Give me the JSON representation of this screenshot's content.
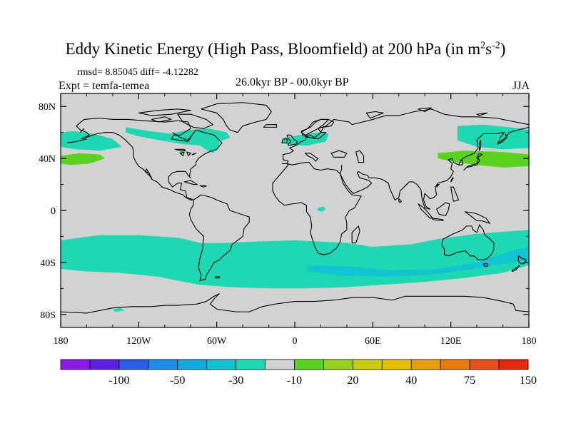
{
  "title": {
    "main": "Eddy Kinetic Energy (High Pass, Bloomfield) at 200 hPa (in m",
    "sup1": "2",
    "mid": "s",
    "sup2": "-2",
    "end": ")"
  },
  "stats_line": "rmsd= 8.85045  diff= -4.12282",
  "expt_label": "Expt = temfa-temea",
  "period_label": "26.0kyr BP - 00.0kyr BP",
  "season_label": "JJA",
  "chart_data": {
    "type": "heatmap",
    "projection": "cylindrical equidistant",
    "x_ticks": [
      {
        "value": -180,
        "label": "180"
      },
      {
        "value": -120,
        "label": "120W"
      },
      {
        "value": -60,
        "label": "60W"
      },
      {
        "value": 0,
        "label": "0"
      },
      {
        "value": 60,
        "label": "60E"
      },
      {
        "value": 120,
        "label": "120E"
      },
      {
        "value": 180,
        "label": "180"
      }
    ],
    "y_ticks": [
      {
        "value": 80,
        "label": "80N"
      },
      {
        "value": 40,
        "label": "40N"
      },
      {
        "value": 0,
        "label": "0"
      },
      {
        "value": -40,
        "label": "40S"
      },
      {
        "value": -80,
        "label": "80S"
      }
    ],
    "xlim": [
      -180,
      180
    ],
    "ylim": [
      -90,
      90
    ],
    "colorbar": {
      "colors": [
        "#8c1ae6",
        "#5a1fe0",
        "#2a5ee6",
        "#1e8ce6",
        "#12a8e0",
        "#12c4d2",
        "#1ed8b4",
        "#d2d2d2",
        "#5ad21e",
        "#96d21e",
        "#c8cc14",
        "#e6c00a",
        "#e69e0a",
        "#e67a0a",
        "#e6501a",
        "#e6280e"
      ],
      "labels": [
        {
          "boundary": 2,
          "text": "-100"
        },
        {
          "boundary": 4,
          "text": "-50"
        },
        {
          "boundary": 6,
          "text": "-30"
        },
        {
          "boundary": 8,
          "text": "-10"
        },
        {
          "boundary": 10,
          "text": "20"
        },
        {
          "boundary": 12,
          "text": "40"
        },
        {
          "boundary": 14,
          "text": "75"
        },
        {
          "boundary": 16,
          "text": "150"
        }
      ]
    },
    "fields": [
      {
        "name": "north-pacific-band",
        "level": "-10 to -30",
        "color": "#1ed8b4",
        "points": [
          [
            -180,
            60
          ],
          [
            -170,
            61
          ],
          [
            -155,
            59
          ],
          [
            -140,
            55
          ],
          [
            -133,
            49
          ],
          [
            -150,
            46
          ],
          [
            -168,
            47
          ],
          [
            -180,
            49
          ]
        ]
      },
      {
        "name": "north-america-arctic-band",
        "level": "-10 to -30",
        "color": "#1ed8b4",
        "points": [
          [
            -130,
            64
          ],
          [
            -112,
            61
          ],
          [
            -96,
            59
          ],
          [
            -82,
            62
          ],
          [
            -66,
            63
          ],
          [
            -52,
            60
          ],
          [
            -50,
            56
          ],
          [
            -58,
            53
          ],
          [
            -58,
            49
          ],
          [
            -63,
            44
          ],
          [
            -67,
            46
          ],
          [
            -73,
            50
          ],
          [
            -86,
            51
          ],
          [
            -104,
            54
          ],
          [
            -120,
            57
          ],
          [
            -130,
            60
          ]
        ]
      },
      {
        "name": "north-atlantic-europe-band",
        "level": "-10 to -30",
        "color": "#1ed8b4",
        "points": [
          [
            -8,
            56
          ],
          [
            4,
            58
          ],
          [
            16,
            60
          ],
          [
            26,
            59
          ],
          [
            24,
            53
          ],
          [
            10,
            50
          ],
          [
            -2,
            50
          ],
          [
            -10,
            52
          ]
        ]
      },
      {
        "name": "north-pacific-east-band",
        "level": "-10 to -30",
        "color": "#1ed8b4",
        "points": [
          [
            125,
            65
          ],
          [
            145,
            66
          ],
          [
            165,
            64
          ],
          [
            180,
            62
          ],
          [
            180,
            48
          ],
          [
            160,
            47
          ],
          [
            140,
            49
          ],
          [
            125,
            54
          ]
        ]
      },
      {
        "name": "south-atlantic-eq-blob",
        "level": "-10 to -30",
        "color": "#1ed8b4",
        "points": [
          [
            18,
            2
          ],
          [
            22,
            3
          ],
          [
            24,
            1
          ],
          [
            21,
            -1
          ],
          [
            17,
            0
          ]
        ]
      },
      {
        "name": "southern-ocean-band",
        "level": "-10 to -30",
        "color": "#1ed8b4",
        "points": [
          [
            -180,
            -23
          ],
          [
            -150,
            -19
          ],
          [
            -120,
            -19
          ],
          [
            -90,
            -21
          ],
          [
            -72,
            -25
          ],
          [
            -55,
            -25
          ],
          [
            -30,
            -24
          ],
          [
            0,
            -23
          ],
          [
            20,
            -24
          ],
          [
            40,
            -25
          ],
          [
            60,
            -28
          ],
          [
            90,
            -26
          ],
          [
            110,
            -22
          ],
          [
            140,
            -18
          ],
          [
            180,
            -15
          ],
          [
            180,
            -42
          ],
          [
            160,
            -48
          ],
          [
            130,
            -52
          ],
          [
            100,
            -55
          ],
          [
            70,
            -57
          ],
          [
            40,
            -59
          ],
          [
            10,
            -60
          ],
          [
            -20,
            -60
          ],
          [
            -50,
            -59
          ],
          [
            -75,
            -57
          ],
          [
            -105,
            -51
          ],
          [
            -135,
            -48
          ],
          [
            -160,
            -47
          ],
          [
            -180,
            -45
          ]
        ]
      },
      {
        "name": "southern-ocean-stronger-core",
        "level": "-30 to -50",
        "color": "#12c4d2",
        "points": [
          [
            10,
            -42
          ],
          [
            40,
            -43
          ],
          [
            75,
            -46
          ],
          [
            110,
            -45
          ],
          [
            140,
            -40
          ],
          [
            170,
            -30
          ],
          [
            180,
            -28
          ],
          [
            180,
            -38
          ],
          [
            150,
            -43
          ],
          [
            110,
            -49
          ],
          [
            70,
            -51
          ],
          [
            35,
            -50
          ],
          [
            10,
            -47
          ]
        ]
      },
      {
        "name": "antarctic-small-blob",
        "level": "-10 to -30",
        "color": "#1ed8b4",
        "points": [
          [
            -140,
            -76
          ],
          [
            -134,
            -75
          ],
          [
            -131,
            -77
          ],
          [
            -138,
            -78
          ]
        ]
      },
      {
        "name": "north-pacific-west-positive",
        "level": "10 to 20",
        "color": "#5ad21e",
        "points": [
          [
            -180,
            42
          ],
          [
            -166,
            44
          ],
          [
            -150,
            43
          ],
          [
            -146,
            40
          ],
          [
            -158,
            36
          ],
          [
            -172,
            35
          ],
          [
            -180,
            36
          ]
        ]
      },
      {
        "name": "great-lakes-positive",
        "level": "10 to 20",
        "color": "#5ad21e",
        "points": [
          [
            -89,
            45
          ],
          [
            -86,
            46
          ],
          [
            -85,
            44
          ],
          [
            -88,
            43
          ]
        ]
      },
      {
        "name": "japan-pacific-positive",
        "level": "10 to 20",
        "color": "#5ad21e",
        "points": [
          [
            110,
            44
          ],
          [
            130,
            46
          ],
          [
            160,
            45
          ],
          [
            180,
            43
          ],
          [
            180,
            34
          ],
          [
            160,
            33
          ],
          [
            140,
            35
          ],
          [
            124,
            37
          ],
          [
            110,
            40
          ]
        ]
      }
    ]
  }
}
